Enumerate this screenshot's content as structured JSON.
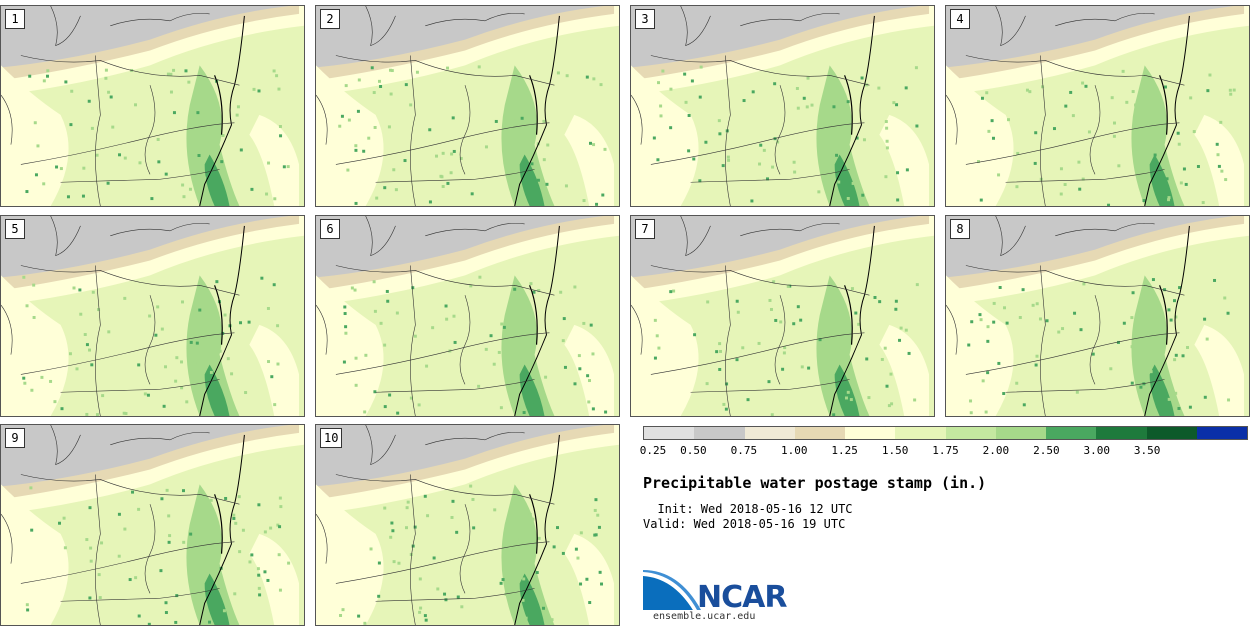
{
  "panels": [
    {
      "label": "1"
    },
    {
      "label": "2"
    },
    {
      "label": "3"
    },
    {
      "label": "4"
    },
    {
      "label": "5"
    },
    {
      "label": "6"
    },
    {
      "label": "7"
    },
    {
      "label": "8"
    },
    {
      "label": "9"
    },
    {
      "label": "10"
    }
  ],
  "colorbar": {
    "colors": [
      "#e0e0e0",
      "#c8c8c8",
      "#f0ead6",
      "#e6d9b4",
      "#ffffd8",
      "#e6f5b8",
      "#c4e8a0",
      "#a6d98a",
      "#4aa860",
      "#1e7a3c",
      "#0d5a2a",
      "#0a2fa8"
    ],
    "ticks": [
      "0.25",
      "0.50",
      "0.75",
      "1.00",
      "1.25",
      "1.50",
      "1.75",
      "2.00",
      "2.50",
      "3.00",
      "3.50"
    ]
  },
  "title": "Precipitable water postage stamp (in.)",
  "init": "  Init: Wed 2018-05-16 12 UTC",
  "valid": "Valid: Wed 2018-05-16 19 UTC",
  "logo": {
    "name": "NCAR",
    "url": "ensemble.ucar.edu"
  }
}
